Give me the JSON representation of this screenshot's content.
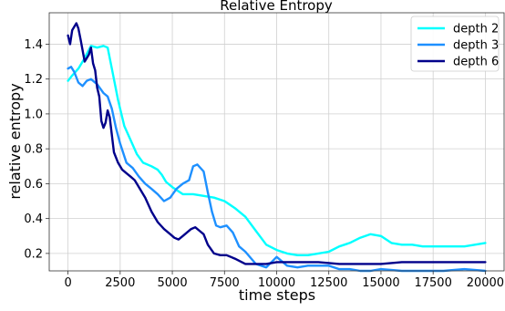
{
  "chart_data": {
    "type": "line",
    "title": "Relative Entropy",
    "xlabel": "time steps",
    "ylabel": "relative entropy",
    "xlim": [
      -900,
      20900
    ],
    "ylim": [
      0.1,
      1.58
    ],
    "xticks": [
      0,
      2500,
      5000,
      7500,
      10000,
      12500,
      15000,
      17500,
      20000
    ],
    "xtick_labels": [
      "0",
      "2500",
      "5000",
      "7500",
      "10000",
      "12500",
      "15000",
      "17500",
      "20000"
    ],
    "yticks": [
      0.2,
      0.4,
      0.6,
      0.8,
      1.0,
      1.2,
      1.4
    ],
    "ytick_labels": [
      "0.2",
      "0.4",
      "0.6",
      "0.8",
      "1.0",
      "1.2",
      "1.4"
    ],
    "grid": true,
    "legend_position": "top-right",
    "series": [
      {
        "name": "depth 2",
        "color": "#00ffff",
        "x": [
          0,
          200,
          500,
          800,
          1100,
          1400,
          1700,
          1900,
          2100,
          2400,
          2700,
          3000,
          3300,
          3600,
          4000,
          4300,
          4500,
          4700,
          5000,
          5500,
          6000,
          6500,
          7000,
          7500,
          8000,
          8500,
          9000,
          9500,
          10000,
          10500,
          11000,
          11500,
          12000,
          12500,
          13000,
          13500,
          14000,
          14500,
          15000,
          15500,
          16000,
          16500,
          17000,
          17500,
          18000,
          18500,
          19000,
          19500,
          20000
        ],
        "values": [
          1.19,
          1.22,
          1.26,
          1.32,
          1.39,
          1.38,
          1.39,
          1.38,
          1.26,
          1.08,
          0.93,
          0.85,
          0.77,
          0.72,
          0.7,
          0.68,
          0.65,
          0.61,
          0.58,
          0.54,
          0.54,
          0.53,
          0.52,
          0.5,
          0.46,
          0.41,
          0.33,
          0.25,
          0.22,
          0.2,
          0.19,
          0.19,
          0.2,
          0.21,
          0.24,
          0.26,
          0.29,
          0.31,
          0.3,
          0.26,
          0.25,
          0.25,
          0.24,
          0.24,
          0.24,
          0.24,
          0.24,
          0.25,
          0.26
        ]
      },
      {
        "name": "depth 3",
        "color": "#1e90ff",
        "x": [
          0,
          150,
          300,
          500,
          700,
          900,
          1100,
          1400,
          1700,
          1900,
          2100,
          2300,
          2500,
          2800,
          3100,
          3400,
          3700,
          4000,
          4300,
          4600,
          4900,
          5200,
          5500,
          5800,
          6000,
          6200,
          6500,
          6700,
          6900,
          7100,
          7300,
          7600,
          7900,
          8200,
          8500,
          9000,
          9500,
          10000,
          10500,
          11000,
          11500,
          12000,
          12500,
          13000,
          13500,
          14000,
          14500,
          15000,
          16000,
          17000,
          18000,
          19000,
          20000
        ],
        "values": [
          1.26,
          1.27,
          1.24,
          1.18,
          1.16,
          1.19,
          1.2,
          1.17,
          1.12,
          1.1,
          1.03,
          0.92,
          0.83,
          0.72,
          0.69,
          0.64,
          0.6,
          0.57,
          0.54,
          0.5,
          0.52,
          0.57,
          0.6,
          0.62,
          0.7,
          0.71,
          0.67,
          0.55,
          0.44,
          0.36,
          0.35,
          0.36,
          0.32,
          0.24,
          0.21,
          0.14,
          0.12,
          0.18,
          0.13,
          0.12,
          0.13,
          0.13,
          0.13,
          0.11,
          0.11,
          0.1,
          0.1,
          0.11,
          0.1,
          0.1,
          0.1,
          0.11,
          0.1
        ]
      },
      {
        "name": "depth 6",
        "color": "#00008b",
        "x": [
          0,
          100,
          200,
          300,
          400,
          500,
          600,
          800,
          1000,
          1100,
          1200,
          1300,
          1400,
          1500,
          1600,
          1700,
          1800,
          1900,
          2000,
          2100,
          2200,
          2400,
          2600,
          2800,
          3000,
          3200,
          3400,
          3700,
          4000,
          4300,
          4600,
          4900,
          5100,
          5300,
          5500,
          5700,
          5900,
          6100,
          6300,
          6500,
          6700,
          7000,
          7300,
          7600,
          8000,
          8500,
          9000,
          9500,
          10000,
          11000,
          12000,
          13000,
          14000,
          15000,
          16000,
          17000,
          18000,
          19000,
          20000
        ],
        "values": [
          1.45,
          1.4,
          1.48,
          1.5,
          1.52,
          1.49,
          1.43,
          1.3,
          1.34,
          1.38,
          1.29,
          1.25,
          1.15,
          1.1,
          0.96,
          0.92,
          0.95,
          1.02,
          0.98,
          0.88,
          0.78,
          0.72,
          0.68,
          0.66,
          0.64,
          0.62,
          0.58,
          0.52,
          0.44,
          0.38,
          0.34,
          0.31,
          0.29,
          0.28,
          0.3,
          0.32,
          0.34,
          0.35,
          0.33,
          0.31,
          0.25,
          0.2,
          0.19,
          0.19,
          0.17,
          0.14,
          0.14,
          0.14,
          0.15,
          0.15,
          0.15,
          0.14,
          0.14,
          0.14,
          0.15,
          0.15,
          0.15,
          0.15,
          0.15
        ]
      }
    ]
  }
}
